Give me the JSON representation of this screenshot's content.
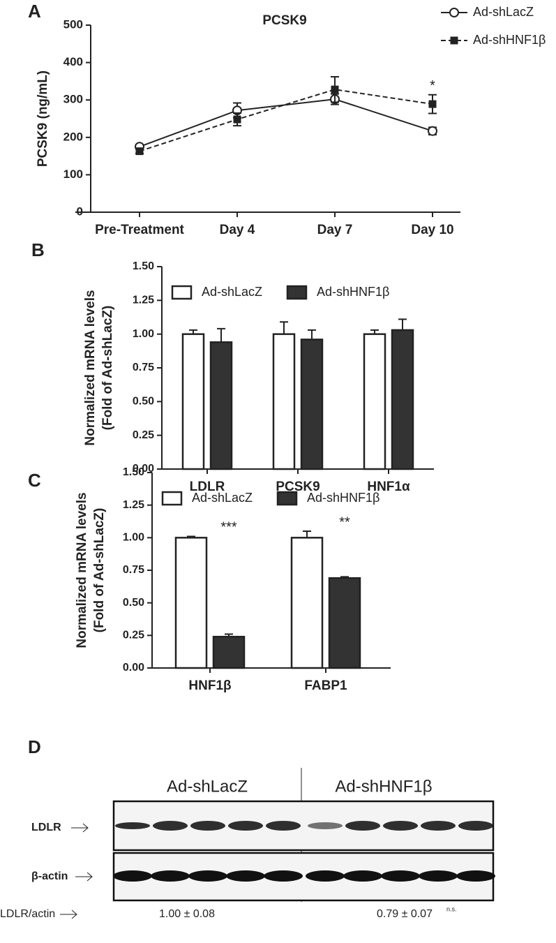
{
  "chart_data": [
    {
      "panel": "A",
      "type": "line",
      "title": "PCSK9",
      "ylabel": [
        "PCSK9 (ng/mL)"
      ],
      "categories": [
        "Pre-Treatment",
        "Day 4",
        "Day 7",
        "Day 10"
      ],
      "series": [
        {
          "name": "Ad-shLacZ",
          "color": "#222222",
          "marker": "circle",
          "linestyle": "solid",
          "values": [
            175,
            272,
            302,
            217
          ],
          "errors": [
            6,
            20,
            14,
            10
          ]
        },
        {
          "name": "Ad-shHNF1β",
          "color": "#222222",
          "marker": "square",
          "linestyle": "dashed",
          "values": [
            163,
            248,
            328,
            289
          ],
          "errors": [
            6,
            17,
            34,
            25
          ]
        }
      ],
      "ylim": [
        0,
        500
      ],
      "yticks": [
        0,
        100,
        200,
        300,
        400,
        500
      ],
      "legend": "upper right",
      "annotations": [
        {
          "label": "*",
          "category": "Day 10"
        }
      ]
    },
    {
      "panel": "B",
      "type": "bar",
      "ylabel": [
        "Normalized mRNA levels",
        "(Fold of Ad-shLacZ)"
      ],
      "categories": [
        "LDLR",
        "PCSK9",
        "HNF1α"
      ],
      "series": [
        {
          "name": "Ad-shLacZ",
          "color": "#ffffff",
          "values": [
            1.0,
            1.0,
            1.0
          ],
          "errors": [
            0.03,
            0.09,
            0.03
          ]
        },
        {
          "name": "Ad-shHNF1β",
          "color": "#333333",
          "values": [
            0.94,
            0.96,
            1.03
          ],
          "errors": [
            0.1,
            0.07,
            0.08
          ]
        }
      ],
      "ylim": [
        0,
        1.5
      ],
      "yticks": [
        {
          "value": 0,
          "label": "0.00"
        },
        {
          "value": 0.25,
          "label": "0.25"
        },
        {
          "value": 0.5,
          "label": "0.50"
        },
        {
          "value": 0.75,
          "label": "0.75"
        },
        {
          "value": 1,
          "label": "1.00"
        },
        {
          "value": 1.25,
          "label": "1.25"
        },
        {
          "value": 1.5,
          "label": "1.50"
        }
      ],
      "legend": "upper left",
      "annotations": []
    },
    {
      "panel": "C",
      "type": "bar",
      "ylabel": [
        "Normalized mRNA levels",
        "(Fold of Ad-shLacZ)"
      ],
      "categories": [
        "HNF1β",
        "FABP1"
      ],
      "series": [
        {
          "name": "Ad-shLacZ",
          "color": "#ffffff",
          "values": [
            1.0,
            1.0
          ],
          "errors": [
            0.01,
            0.05
          ]
        },
        {
          "name": "Ad-shHNF1β",
          "color": "#333333",
          "values": [
            0.24,
            0.69
          ],
          "errors": [
            0.02,
            0.01
          ]
        }
      ],
      "ylim": [
        0,
        1.5
      ],
      "yticks": [
        {
          "value": 0,
          "label": "0.00"
        },
        {
          "value": 0.25,
          "label": "0.25"
        },
        {
          "value": 0.5,
          "label": "0.50"
        },
        {
          "value": 0.75,
          "label": "0.75"
        },
        {
          "value": 1,
          "label": "1.00"
        },
        {
          "value": 1.25,
          "label": "1.25"
        },
        {
          "value": 1.5,
          "label": "1.50"
        }
      ],
      "legend": "upper left",
      "annotations": [
        {
          "label": "***",
          "category": "HNF1β"
        },
        {
          "label": "**",
          "category": "FABP1"
        }
      ]
    }
  ],
  "blot": {
    "panel": "D",
    "groups": [
      "Ad-shLacZ",
      "Ad-shHNF1β"
    ],
    "rows": [
      "LDLR",
      "β-actin"
    ],
    "quant_label": "LDLR/actin",
    "quant": [
      "1.00 ± 0.08",
      "0.79 ± 0.07"
    ],
    "quant_note": "n.s."
  }
}
